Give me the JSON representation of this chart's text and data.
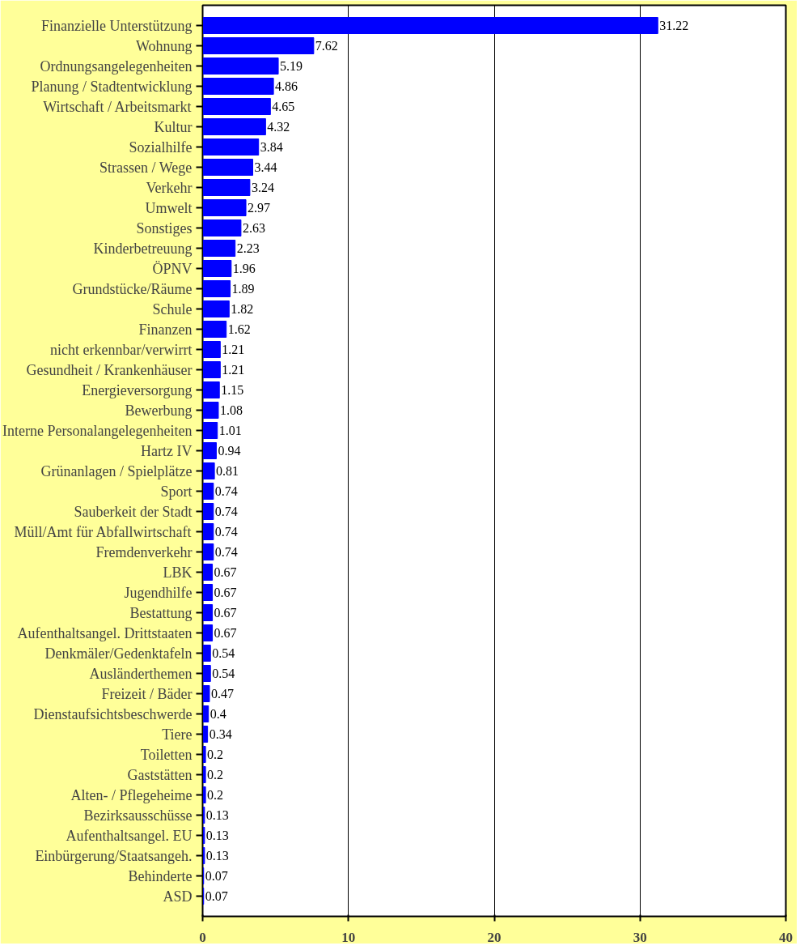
{
  "chart_data": {
    "type": "bar",
    "orientation": "horizontal",
    "color": "#0000ff",
    "data_labels": true,
    "grid": "x",
    "xlim": [
      0,
      40
    ],
    "xticks": [
      0,
      10,
      20,
      30,
      40
    ],
    "categories": [
      "Finanzielle Unterstützung",
      "Wohnung",
      "Ordnungsangelegenheiten",
      "Planung / Stadtentwicklung",
      "Wirtschaft / Arbeitsmarkt",
      "Kultur",
      "Sozialhilfe",
      "Strassen / Wege",
      "Verkehr",
      "Umwelt",
      "Sonstiges",
      "Kinderbetreuung",
      "ÖPNV",
      "Grundstücke/Räume",
      "Schule",
      "Finanzen",
      "nicht erkennbar/verwirrt",
      "Gesundheit / Krankenhäuser",
      "Energieversorgung",
      "Bewerbung",
      "Interne Personalangelegenheiten",
      "Hartz IV",
      "Grünanlagen / Spielplätze",
      "Sport",
      "Sauberkeit der Stadt",
      "Müll/Amt für Abfallwirtschaft",
      "Fremdenverkehr",
      "LBK",
      "Jugendhilfe",
      "Bestattung",
      "Aufenthaltsangel. Drittstaaten",
      "Denkmäler/Gedenktafeln",
      "Ausländerthemen",
      "Freizeit / Bäder",
      "Dienstaufsichtsbeschwerde",
      "Tiere",
      "Toiletten",
      "Gaststätten",
      "Alten- / Pflegeheime",
      "Bezirksausschüsse",
      "Aufenthaltsangel. EU",
      "Einbürgerung/Staatsangeh.",
      "Behinderte",
      "ASD"
    ],
    "values": [
      31.22,
      7.62,
      5.19,
      4.86,
      4.65,
      4.32,
      3.84,
      3.44,
      3.24,
      2.97,
      2.63,
      2.23,
      1.96,
      1.89,
      1.82,
      1.62,
      1.21,
      1.21,
      1.15,
      1.08,
      1.01,
      0.94,
      0.81,
      0.74,
      0.74,
      0.74,
      0.74,
      0.67,
      0.67,
      0.67,
      0.67,
      0.54,
      0.54,
      0.47,
      0.4,
      0.34,
      0.2,
      0.2,
      0.2,
      0.13,
      0.13,
      0.13,
      0.07,
      0.07
    ]
  }
}
